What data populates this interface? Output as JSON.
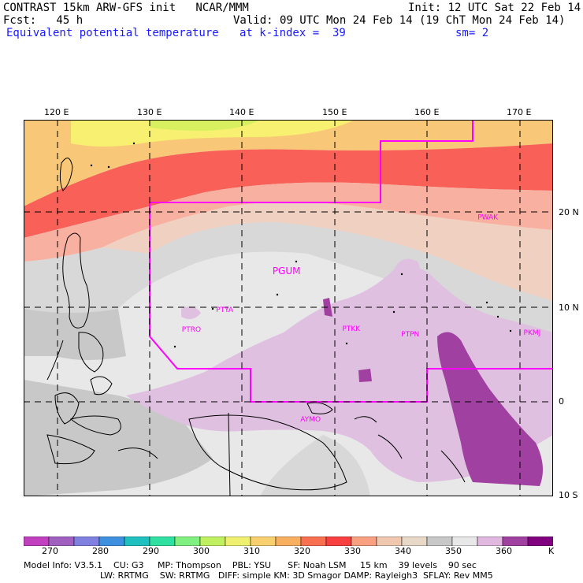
{
  "header": {
    "line1_left": "CONTRAST 15km ARW-GFS init   NCAR/MMM",
    "line1_right": "Init: 12 UTC Sat 22 Feb 14",
    "line2_left": "Fcst:   45 h",
    "line2_right": "Valid: 09 UTC Mon 24 Feb 14 (19 ChT Mon 24 Feb 14)",
    "line3_left": "Equivalent potential temperature",
    "line3_mid": "at k-index =  39",
    "line3_right": "sm= 2"
  },
  "map": {
    "lon_labels": [
      "120 E",
      "130 E",
      "140 E",
      "150 E",
      "160 E",
      "170 E"
    ],
    "lat_labels": [
      "20 N",
      "10 N",
      "0",
      "10 S"
    ],
    "stations": [
      {
        "id": "PWAK",
        "lon": 166.6,
        "lat": 19.3
      },
      {
        "id": "PGUM",
        "lon": 144.8,
        "lat": 13.5
      },
      {
        "id": "PTYA",
        "lon": 138.1,
        "lat": 9.5
      },
      {
        "id": "PTRO",
        "lon": 134.5,
        "lat": 7.4
      },
      {
        "id": "PTKK",
        "lon": 151.8,
        "lat": 7.5
      },
      {
        "id": "PTPN",
        "lon": 158.2,
        "lat": 6.9
      },
      {
        "id": "PKMJ",
        "lon": 171.4,
        "lat": 7.1
      },
      {
        "id": "AYMO",
        "lon": 147.4,
        "lat": -2.1
      }
    ],
    "fill_colors": {
      "t280": "#a0b080",
      "t300": "#d8f060",
      "t310": "#f8f070",
      "t320": "#f8c878",
      "t330": "#f89870",
      "t335": "#f86058",
      "t340": "#f8b0a0",
      "t345": "#f0d0c0",
      "t350": "#c8c8c8",
      "t355": "#d8d8d8",
      "t360": "#eeeeee",
      "t365": "#e0c0e0",
      "t370": "#a040a0"
    },
    "boundary_color": "#ff00ff"
  },
  "colorbar": {
    "colors": [
      "#c040c0",
      "#a060c0",
      "#8080e0",
      "#4090e0",
      "#20c0c0",
      "#30e0a0",
      "#80f080",
      "#c0f060",
      "#f0f070",
      "#f8d070",
      "#f8b060",
      "#f87050",
      "#f84040",
      "#f8a080",
      "#f0c8b0",
      "#e8d8c8",
      "#c8c8c8",
      "#e8e8e8",
      "#e0b8e0",
      "#a040a0",
      "#800080"
    ],
    "tick_labels": [
      "270",
      "280",
      "290",
      "300",
      "310",
      "320",
      "330",
      "340",
      "350",
      "360",
      "K"
    ]
  },
  "model_info": {
    "line1": "Model Info: V3.5.1    CU: G3     MP: Thompson    PBL: YSU      SF: Noah LSM     15 km    39 levels    90 sec",
    "line2": "LW: RRTMG    SW: RRTMG   DIFF: simple KM: 3D Smagor DAMP: Rayleigh3  SFLAY: Rev MM5"
  }
}
